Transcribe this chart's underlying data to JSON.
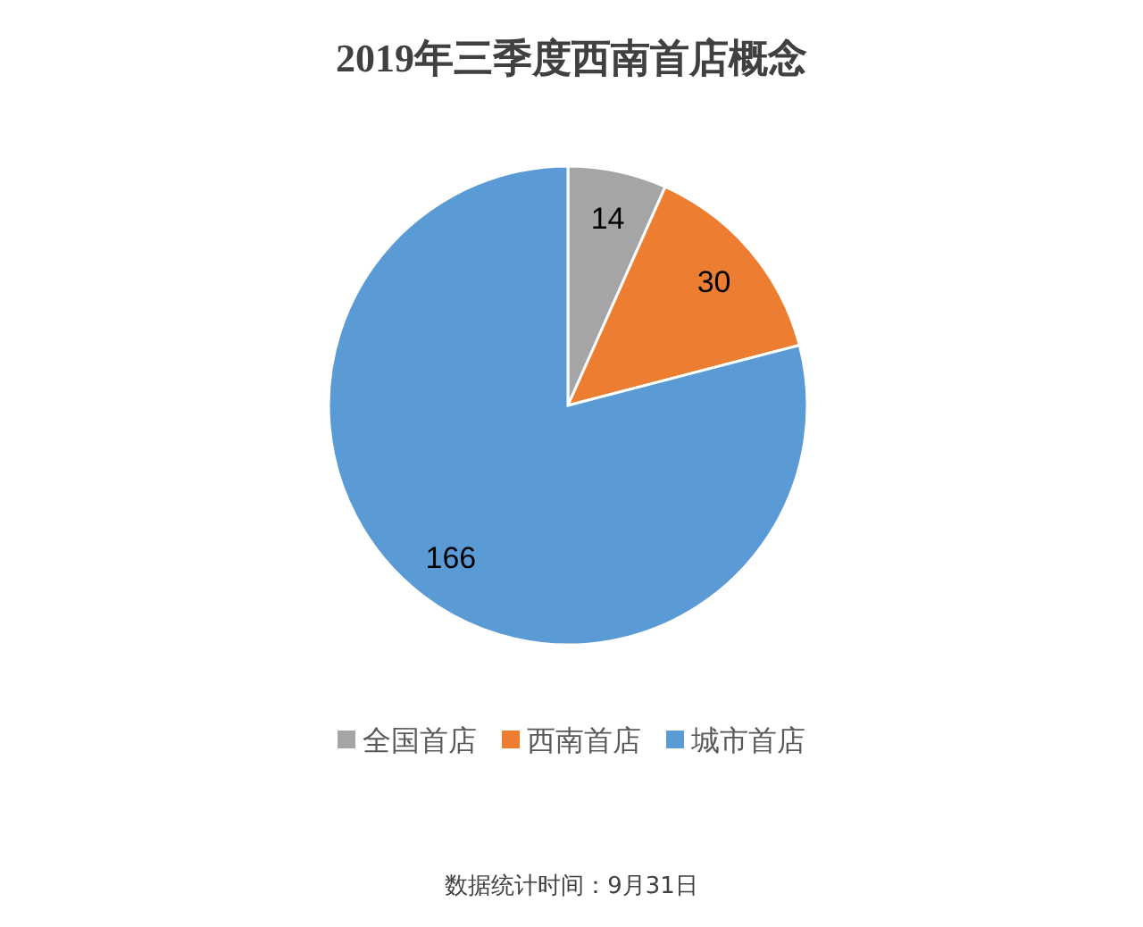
{
  "chart_data": {
    "type": "pie",
    "title": "2019年三季度西南首店概念",
    "categories": [
      "全国首店",
      "西南首店",
      "城市首店"
    ],
    "values": [
      14,
      30,
      166
    ],
    "colors": [
      "#a5a5a5",
      "#ed7d31",
      "#5b9bd5"
    ],
    "data_labels": true,
    "legend": "bottom",
    "annotations": [
      "数据统计时间：9月31日"
    ]
  }
}
